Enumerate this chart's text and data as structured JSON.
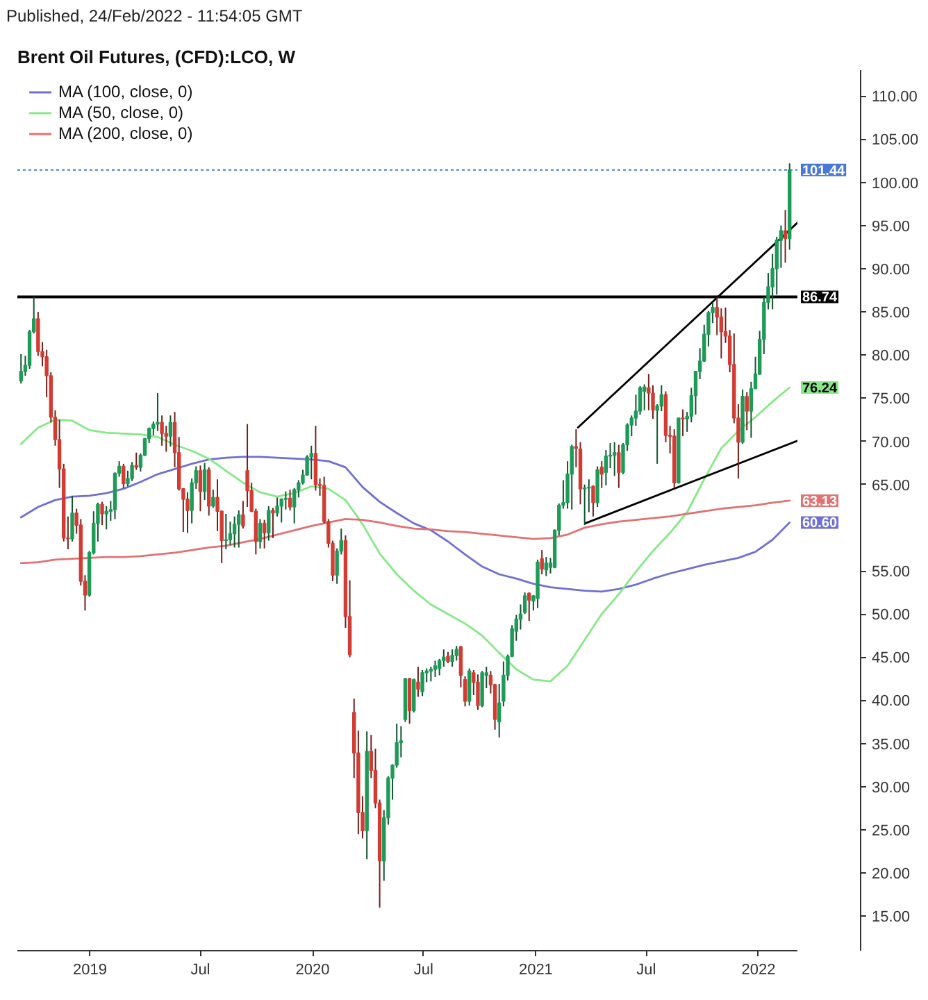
{
  "chart_data": {
    "type": "candlestick",
    "title": "Brent Oil Futures, (CFD):LCO, W",
    "annotations": [
      "Published, 24/Feb/2022 - 11:54:05 GMT"
    ],
    "x": [
      "2018-09-10",
      "2018-09-17",
      "2018-09-24",
      "2018-10-01",
      "2018-10-08",
      "2018-10-15",
      "2018-10-22",
      "2018-10-29",
      "2018-11-05",
      "2018-11-12",
      "2018-11-19",
      "2018-11-26",
      "2018-12-03",
      "2018-12-10",
      "2018-12-17",
      "2018-12-24",
      "2018-12-31",
      "2019-01-07",
      "2019-01-14",
      "2019-01-21",
      "2019-01-28",
      "2019-02-04",
      "2019-02-11",
      "2019-02-18",
      "2019-02-25",
      "2019-03-04",
      "2019-03-11",
      "2019-03-18",
      "2019-03-25",
      "2019-04-01",
      "2019-04-08",
      "2019-04-15",
      "2019-04-22",
      "2019-04-29",
      "2019-05-06",
      "2019-05-13",
      "2019-05-20",
      "2019-05-27",
      "2019-06-03",
      "2019-06-10",
      "2019-06-17",
      "2019-06-24",
      "2019-07-01",
      "2019-07-08",
      "2019-07-15",
      "2019-07-22",
      "2019-07-29",
      "2019-08-05",
      "2019-08-12",
      "2019-08-19",
      "2019-08-26",
      "2019-09-02",
      "2019-09-09",
      "2019-09-16",
      "2019-09-23",
      "2019-09-30",
      "2019-10-07",
      "2019-10-14",
      "2019-10-21",
      "2019-10-28",
      "2019-11-04",
      "2019-11-11",
      "2019-11-18",
      "2019-11-25",
      "2019-12-02",
      "2019-12-09",
      "2019-12-16",
      "2019-12-23",
      "2019-12-30",
      "2020-01-06",
      "2020-01-13",
      "2020-01-20",
      "2020-01-27",
      "2020-02-03",
      "2020-02-10",
      "2020-02-17",
      "2020-02-24",
      "2020-03-02",
      "2020-03-09",
      "2020-03-16",
      "2020-03-23",
      "2020-03-30",
      "2020-04-06",
      "2020-04-13",
      "2020-04-20",
      "2020-04-27",
      "2020-05-04",
      "2020-05-11",
      "2020-05-18",
      "2020-05-25",
      "2020-06-01",
      "2020-06-08",
      "2020-06-15",
      "2020-06-22",
      "2020-06-29",
      "2020-07-06",
      "2020-07-13",
      "2020-07-20",
      "2020-07-27",
      "2020-08-03",
      "2020-08-10",
      "2020-08-17",
      "2020-08-24",
      "2020-08-31",
      "2020-09-07",
      "2020-09-14",
      "2020-09-21",
      "2020-09-28",
      "2020-10-05",
      "2020-10-12",
      "2020-10-19",
      "2020-10-26",
      "2020-11-02",
      "2020-11-09",
      "2020-11-16",
      "2020-11-23",
      "2020-11-30",
      "2020-12-07",
      "2020-12-14",
      "2020-12-21",
      "2020-12-28",
      "2021-01-04",
      "2021-01-11",
      "2021-01-18",
      "2021-01-25",
      "2021-02-01",
      "2021-02-08",
      "2021-02-15",
      "2021-02-22",
      "2021-03-01",
      "2021-03-08",
      "2021-03-15",
      "2021-03-22",
      "2021-03-29",
      "2021-04-05",
      "2021-04-12",
      "2021-04-19",
      "2021-04-26",
      "2021-05-03",
      "2021-05-10",
      "2021-05-17",
      "2021-05-24",
      "2021-05-31",
      "2021-06-07",
      "2021-06-14",
      "2021-06-21",
      "2021-06-28",
      "2021-07-05",
      "2021-07-12",
      "2021-07-19",
      "2021-07-26",
      "2021-08-02",
      "2021-08-09",
      "2021-08-16",
      "2021-08-23",
      "2021-08-30",
      "2021-09-06",
      "2021-09-13",
      "2021-09-20",
      "2021-09-27",
      "2021-10-04",
      "2021-10-11",
      "2021-10-18",
      "2021-10-25",
      "2021-11-01",
      "2021-11-08",
      "2021-11-15",
      "2021-11-22",
      "2021-11-29",
      "2021-12-06",
      "2021-12-13",
      "2021-12-20",
      "2021-12-27",
      "2022-01-03",
      "2022-01-10",
      "2022-01-17",
      "2022-01-24",
      "2022-01-31",
      "2022-02-07",
      "2022-02-14",
      "2022-02-21"
    ],
    "ohlc": [
      [
        77.0,
        80.1,
        76.7,
        78.1
      ],
      [
        78.1,
        79.9,
        77.6,
        78.8
      ],
      [
        78.8,
        82.9,
        78.4,
        82.7
      ],
      [
        82.7,
        86.74,
        82.5,
        84.2
      ],
      [
        84.2,
        85.0,
        79.9,
        80.4
      ],
      [
        80.4,
        81.5,
        78.7,
        79.8
      ],
      [
        79.8,
        80.6,
        75.1,
        77.6
      ],
      [
        77.6,
        78.0,
        72.2,
        72.8
      ],
      [
        72.8,
        73.6,
        69.5,
        70.2
      ],
      [
        70.2,
        72.5,
        64.6,
        66.8
      ],
      [
        66.8,
        67.4,
        58.4,
        58.8
      ],
      [
        58.8,
        61.3,
        57.5,
        58.7
      ],
      [
        58.7,
        63.7,
        58.4,
        61.7
      ],
      [
        61.7,
        62.2,
        59.3,
        60.3
      ],
      [
        60.3,
        61.0,
        53.3,
        53.8
      ],
      [
        53.8,
        54.5,
        50.4,
        52.2
      ],
      [
        52.2,
        57.3,
        52.0,
        57.1
      ],
      [
        57.1,
        61.9,
        56.9,
        60.5
      ],
      [
        60.5,
        62.9,
        58.4,
        62.7
      ],
      [
        62.7,
        63.0,
        60.3,
        61.6
      ],
      [
        61.6,
        62.5,
        59.8,
        61.9
      ],
      [
        61.9,
        63.1,
        60.8,
        62.1
      ],
      [
        62.1,
        66.4,
        61.0,
        66.3
      ],
      [
        66.3,
        67.7,
        65.9,
        67.1
      ],
      [
        67.1,
        67.4,
        64.6,
        65.1
      ],
      [
        65.1,
        66.6,
        64.8,
        65.7
      ],
      [
        65.7,
        67.6,
        65.4,
        67.2
      ],
      [
        67.2,
        68.7,
        66.7,
        67.0
      ],
      [
        67.0,
        68.6,
        66.5,
        68.4
      ],
      [
        68.4,
        70.4,
        68.3,
        70.3
      ],
      [
        70.3,
        71.6,
        69.8,
        71.5
      ],
      [
        71.5,
        72.3,
        70.7,
        72.0
      ],
      [
        72.0,
        75.6,
        71.2,
        72.2
      ],
      [
        72.2,
        73.0,
        69.5,
        70.9
      ],
      [
        70.9,
        71.8,
        68.8,
        70.6
      ],
      [
        70.6,
        73.0,
        69.4,
        72.2
      ],
      [
        72.2,
        73.4,
        67.0,
        68.7
      ],
      [
        68.7,
        70.5,
        64.3,
        64.5
      ],
      [
        64.5,
        64.6,
        59.5,
        63.3
      ],
      [
        63.3,
        64.1,
        59.4,
        62.0
      ],
      [
        62.0,
        65.7,
        60.5,
        65.2
      ],
      [
        65.2,
        67.1,
        64.5,
        66.6
      ],
      [
        66.6,
        67.2,
        61.9,
        64.2
      ],
      [
        64.2,
        67.5,
        63.2,
        66.7
      ],
      [
        66.7,
        67.0,
        61.4,
        62.5
      ],
      [
        62.5,
        64.4,
        62.3,
        63.5
      ],
      [
        63.5,
        65.6,
        59.6,
        61.9
      ],
      [
        61.9,
        62.0,
        55.9,
        58.5
      ],
      [
        58.5,
        61.6,
        57.5,
        58.6
      ],
      [
        58.6,
        60.7,
        58.0,
        59.3
      ],
      [
        59.3,
        61.3,
        57.7,
        60.4
      ],
      [
        60.4,
        62.0,
        57.7,
        61.5
      ],
      [
        61.5,
        63.1,
        59.9,
        60.2
      ],
      [
        66.6,
        72.0,
        62.4,
        64.3
      ],
      [
        64.3,
        65.2,
        61.8,
        61.9
      ],
      [
        61.9,
        62.2,
        56.9,
        58.4
      ],
      [
        58.4,
        61.0,
        57.6,
        60.5
      ],
      [
        60.5,
        60.9,
        57.6,
        59.4
      ],
      [
        59.4,
        62.5,
        58.5,
        62.0
      ],
      [
        62.0,
        62.3,
        58.8,
        61.7
      ],
      [
        61.7,
        63.5,
        61.3,
        62.5
      ],
      [
        62.5,
        63.4,
        60.6,
        63.3
      ],
      [
        63.3,
        64.2,
        62.1,
        63.4
      ],
      [
        63.4,
        64.4,
        62.0,
        62.4
      ],
      [
        62.4,
        64.6,
        60.5,
        64.4
      ],
      [
        64.4,
        65.5,
        63.5,
        65.2
      ],
      [
        65.2,
        66.7,
        65.0,
        66.1
      ],
      [
        66.1,
        68.4,
        66.0,
        68.2
      ],
      [
        68.2,
        69.5,
        65.6,
        68.6
      ],
      [
        68.6,
        71.8,
        64.3,
        65.0
      ],
      [
        65.0,
        65.7,
        63.7,
        64.9
      ],
      [
        64.9,
        65.9,
        60.5,
        60.7
      ],
      [
        60.7,
        61.0,
        57.7,
        58.2
      ],
      [
        58.2,
        58.5,
        53.8,
        54.5
      ],
      [
        54.5,
        57.6,
        53.5,
        57.3
      ],
      [
        57.3,
        59.9,
        56.9,
        58.5
      ],
      [
        58.5,
        59.1,
        48.4,
        49.7
      ],
      [
        49.7,
        53.9,
        45.0,
        45.3
      ],
      [
        38.6,
        40.2,
        31.0,
        33.9
      ],
      [
        33.9,
        36.5,
        24.5,
        27.0
      ],
      [
        27.0,
        28.9,
        24.0,
        24.9
      ],
      [
        24.9,
        36.4,
        21.6,
        34.1
      ],
      [
        34.1,
        36.0,
        31.0,
        31.9
      ],
      [
        31.9,
        34.4,
        27.5,
        28.1
      ],
      [
        28.1,
        28.5,
        16.0,
        21.4
      ],
      [
        21.4,
        27.3,
        19.1,
        26.4
      ],
      [
        26.4,
        31.2,
        25.6,
        31.0
      ],
      [
        31.0,
        32.6,
        28.5,
        32.5
      ],
      [
        32.5,
        37.3,
        32.2,
        35.1
      ],
      [
        35.1,
        37.0,
        33.4,
        35.3
      ],
      [
        37.8,
        42.6,
        37.5,
        42.5
      ],
      [
        42.5,
        42.6,
        37.3,
        38.8
      ],
      [
        38.8,
        42.5,
        38.6,
        42.4
      ],
      [
        42.1,
        43.9,
        40.4,
        41.3
      ],
      [
        41.0,
        43.5,
        40.5,
        43.2
      ],
      [
        43.2,
        43.7,
        42.1,
        43.4
      ],
      [
        43.4,
        43.9,
        42.2,
        43.6
      ],
      [
        43.6,
        44.6,
        42.7,
        44.0
      ],
      [
        43.7,
        44.8,
        42.9,
        44.6
      ],
      [
        44.6,
        45.9,
        43.9,
        45.0
      ],
      [
        45.1,
        45.6,
        44.3,
        44.5
      ],
      [
        44.5,
        45.9,
        43.9,
        45.2
      ],
      [
        45.2,
        46.3,
        44.6,
        45.9
      ],
      [
        46.2,
        46.3,
        41.5,
        42.9
      ],
      [
        42.4,
        42.8,
        39.3,
        39.9
      ],
      [
        39.9,
        43.7,
        39.4,
        43.4
      ],
      [
        43.2,
        43.5,
        40.6,
        42.1
      ],
      [
        42.1,
        43.0,
        38.9,
        39.4
      ],
      [
        39.4,
        43.4,
        39.2,
        43.2
      ],
      [
        42.9,
        43.9,
        41.4,
        43.2
      ],
      [
        42.9,
        43.4,
        40.8,
        41.8
      ],
      [
        41.8,
        41.9,
        36.6,
        37.8
      ],
      [
        37.5,
        41.9,
        35.7,
        39.7
      ],
      [
        39.9,
        44.5,
        39.3,
        42.9
      ],
      [
        42.9,
        45.3,
        42.3,
        45.1
      ],
      [
        45.1,
        48.7,
        45.0,
        48.3
      ],
      [
        48.0,
        49.9,
        46.9,
        49.4
      ],
      [
        49.4,
        51.1,
        48.2,
        50.0
      ],
      [
        50.2,
        52.5,
        50.0,
        52.1
      ],
      [
        52.4,
        52.5,
        49.2,
        51.6
      ],
      [
        51.5,
        52.2,
        50.4,
        52.1
      ],
      [
        51.8,
        56.3,
        50.7,
        56.0
      ],
      [
        56.4,
        57.4,
        54.6,
        55.2
      ],
      [
        55.1,
        56.6,
        54.4,
        55.9
      ],
      [
        55.4,
        56.5,
        54.7,
        55.9
      ],
      [
        55.4,
        59.8,
        55.3,
        59.7
      ],
      [
        59.7,
        62.8,
        59.1,
        62.6
      ],
      [
        62.6,
        65.5,
        62.2,
        62.9
      ],
      [
        62.9,
        67.7,
        62.2,
        66.2
      ],
      [
        66.2,
        69.6,
        62.1,
        69.4
      ],
      [
        69.4,
        71.4,
        67.0,
        69.2
      ],
      [
        69.1,
        69.9,
        62.7,
        64.5
      ],
      [
        64.5,
        65.0,
        60.3,
        64.6
      ],
      [
        64.6,
        65.6,
        61.8,
        64.7
      ],
      [
        64.8,
        64.9,
        61.3,
        62.9
      ],
      [
        62.9,
        67.1,
        62.4,
        66.7
      ],
      [
        67.0,
        67.7,
        64.6,
        66.2
      ],
      [
        66.4,
        69.0,
        64.9,
        68.3
      ],
      [
        68.3,
        69.8,
        66.9,
        68.4
      ],
      [
        68.4,
        69.9,
        66.0,
        68.7
      ],
      [
        68.7,
        69.6,
        64.6,
        66.4
      ],
      [
        66.4,
        69.8,
        66.2,
        69.6
      ],
      [
        69.6,
        72.1,
        68.9,
        71.9
      ],
      [
        71.9,
        73.0,
        70.6,
        72.7
      ],
      [
        72.7,
        75.4,
        71.8,
        73.5
      ],
      [
        73.5,
        76.4,
        73.1,
        76.2
      ],
      [
        75.8,
        76.6,
        73.6,
        76.3
      ],
      [
        76.2,
        77.8,
        73.6,
        75.6
      ],
      [
        75.6,
        76.5,
        72.6,
        73.6
      ],
      [
        73.6,
        74.3,
        67.4,
        74.1
      ],
      [
        74.1,
        76.5,
        73.5,
        75.4
      ],
      [
        75.4,
        75.8,
        69.9,
        70.7
      ],
      [
        70.7,
        71.8,
        68.6,
        70.6
      ],
      [
        70.6,
        71.4,
        64.6,
        65.2
      ],
      [
        65.2,
        72.7,
        65.1,
        72.7
      ],
      [
        72.7,
        73.7,
        70.6,
        72.6
      ],
      [
        72.6,
        73.4,
        71.1,
        72.9
      ],
      [
        72.9,
        76.2,
        72.2,
        75.3
      ],
      [
        75.3,
        78.1,
        73.1,
        78.1
      ],
      [
        78.1,
        80.8,
        77.2,
        79.3
      ],
      [
        79.3,
        83.5,
        79.2,
        82.4
      ],
      [
        82.4,
        85.1,
        81.0,
        84.9
      ],
      [
        84.9,
        86.1,
        83.7,
        85.5
      ],
      [
        85.5,
        86.7,
        82.3,
        84.4
      ],
      [
        84.4,
        85.4,
        79.6,
        82.7
      ],
      [
        82.7,
        85.5,
        81.4,
        82.2
      ],
      [
        82.2,
        82.9,
        78.0,
        78.9
      ],
      [
        78.9,
        82.5,
        72.1,
        72.7
      ],
      [
        72.7,
        74.3,
        65.7,
        69.9
      ],
      [
        69.9,
        76.0,
        69.7,
        75.2
      ],
      [
        75.2,
        75.7,
        71.3,
        73.5
      ],
      [
        73.5,
        76.9,
        70.4,
        76.1
      ],
      [
        76.1,
        79.8,
        76.1,
        77.8
      ],
      [
        77.8,
        82.8,
        77.7,
        81.8
      ],
      [
        81.8,
        86.7,
        80.1,
        86.1
      ],
      [
        86.1,
        89.5,
        85.3,
        87.9
      ],
      [
        87.9,
        91.7,
        85.3,
        90.0
      ],
      [
        90.0,
        93.7,
        87.0,
        93.3
      ],
      [
        93.3,
        95.0,
        90.1,
        94.4
      ],
      [
        94.4,
        96.8,
        90.7,
        93.5
      ],
      [
        93.5,
        102.2,
        92.2,
        101.44
      ]
    ],
    "colors": [
      "#1e9b57",
      "#1e9b57",
      "#1e9b57",
      "#1e9b57",
      "#d23c33",
      "#d23c33",
      "#d23c33",
      "#d23c33",
      "#d23c33",
      "#d23c33",
      "#d23c33",
      "#d23c33",
      "#1e9b57",
      "#d23c33",
      "#d23c33",
      "#d23c33",
      "#1e9b57",
      "#1e9b57",
      "#1e9b57",
      "#d23c33",
      "#1e9b57",
      "#1e9b57",
      "#1e9b57",
      "#1e9b57",
      "#d23c33",
      "#1e9b57",
      "#1e9b57",
      "#d23c33",
      "#1e9b57",
      "#1e9b57",
      "#1e9b57",
      "#1e9b57",
      "#1e9b57",
      "#d23c33",
      "#d23c33",
      "#1e9b57",
      "#d23c33",
      "#d23c33",
      "#d23c33",
      "#d23c33",
      "#1e9b57",
      "#1e9b57",
      "#d23c33",
      "#1e9b57",
      "#d23c33",
      "#1e9b57",
      "#d23c33",
      "#d23c33",
      "#1e9b57",
      "#1e9b57",
      "#1e9b57",
      "#1e9b57",
      "#d23c33",
      "#d23c33",
      "#d23c33",
      "#d23c33",
      "#1e9b57",
      "#d23c33",
      "#1e9b57",
      "#d23c33",
      "#1e9b57",
      "#1e9b57",
      "#1e9b57",
      "#d23c33",
      "#1e9b57",
      "#1e9b57",
      "#1e9b57",
      "#1e9b57",
      "#1e9b57",
      "#d23c33",
      "#d23c33",
      "#d23c33",
      "#d23c33",
      "#d23c33",
      "#1e9b57",
      "#1e9b57",
      "#d23c33",
      "#d23c33",
      "#d23c33",
      "#d23c33",
      "#d23c33",
      "#1e9b57",
      "#d23c33",
      "#d23c33",
      "#d23c33",
      "#1e9b57",
      "#1e9b57",
      "#1e9b57",
      "#1e9b57",
      "#1e9b57",
      "#1e9b57",
      "#d23c33",
      "#1e9b57",
      "#d23c33",
      "#1e9b57",
      "#1e9b57",
      "#1e9b57",
      "#1e9b57",
      "#1e9b57",
      "#1e9b57",
      "#d23c33",
      "#1e9b57",
      "#1e9b57",
      "#d23c33",
      "#d23c33",
      "#1e9b57",
      "#d23c33",
      "#d23c33",
      "#1e9b57",
      "#1e9b57",
      "#d23c33",
      "#d23c33",
      "#1e9b57",
      "#1e9b57",
      "#1e9b57",
      "#1e9b57",
      "#1e9b57",
      "#1e9b57",
      "#1e9b57",
      "#d23c33",
      "#1e9b57",
      "#1e9b57",
      "#d23c33",
      "#1e9b57",
      "#1e9b57",
      "#1e9b57",
      "#1e9b57",
      "#1e9b57",
      "#1e9b57",
      "#1e9b57",
      "#d23c33",
      "#d23c33",
      "#1e9b57",
      "#1e9b57",
      "#d23c33",
      "#1e9b57",
      "#d23c33",
      "#1e9b57",
      "#1e9b57",
      "#1e9b57",
      "#d23c33",
      "#1e9b57",
      "#1e9b57",
      "#1e9b57",
      "#1e9b57",
      "#1e9b57",
      "#1e9b57",
      "#d23c33",
      "#d23c33",
      "#1e9b57",
      "#1e9b57",
      "#d23c33",
      "#d23c33",
      "#d23c33",
      "#1e9b57",
      "#d23c33",
      "#1e9b57",
      "#1e9b57",
      "#1e9b57",
      "#1e9b57",
      "#1e9b57",
      "#1e9b57",
      "#1e9b57",
      "#d23c33",
      "#d23c33",
      "#d23c33",
      "#d23c33",
      "#d23c33",
      "#d23c33",
      "#1e9b57",
      "#d23c33",
      "#1e9b57",
      "#1e9b57",
      "#1e9b57",
      "#1e9b57",
      "#1e9b57",
      "#1e9b57",
      "#1e9b57",
      "#1e9b57",
      "#d23c33",
      "#1e9b57"
    ],
    "series": [
      {
        "name": "MA (100, close, 0)",
        "type": "line",
        "color": "#6f6fd6",
        "x": [
          "2018-09-10",
          "2018-10-08",
          "2018-11-05",
          "2018-12-03",
          "2018-12-31",
          "2019-01-28",
          "2019-02-25",
          "2019-03-25",
          "2019-04-22",
          "2019-05-20",
          "2019-06-17",
          "2019-07-15",
          "2019-08-12",
          "2019-09-09",
          "2019-10-07",
          "2019-11-04",
          "2019-12-02",
          "2019-12-30",
          "2020-01-27",
          "2020-02-24",
          "2020-03-23",
          "2020-04-20",
          "2020-05-18",
          "2020-06-15",
          "2020-07-13",
          "2020-08-10",
          "2020-09-07",
          "2020-10-05",
          "2020-11-02",
          "2020-11-30",
          "2020-12-28",
          "2021-01-25",
          "2021-02-22",
          "2021-03-22",
          "2021-04-19",
          "2021-05-17",
          "2021-06-14",
          "2021-07-12",
          "2021-08-09",
          "2021-09-06",
          "2021-10-04",
          "2021-11-01",
          "2021-11-29",
          "2021-12-27",
          "2022-01-24",
          "2022-02-21"
        ],
        "values": [
          61.2,
          62.4,
          63.2,
          63.6,
          63.7,
          64.0,
          64.5,
          65.3,
          66.2,
          66.8,
          67.4,
          67.9,
          68.1,
          68.2,
          68.2,
          68.1,
          68.0,
          67.9,
          67.7,
          67.0,
          64.7,
          63.0,
          61.7,
          60.5,
          59.7,
          58.4,
          56.9,
          55.5,
          54.6,
          54.1,
          53.5,
          53.1,
          52.9,
          52.7,
          52.6,
          52.9,
          53.4,
          54.1,
          54.7,
          55.2,
          55.7,
          56.1,
          56.5,
          57.2,
          58.6,
          60.6
        ],
        "value_labels": [
          null,
          null,
          null,
          null,
          null,
          null,
          null,
          null,
          null,
          null,
          null,
          null,
          null,
          null,
          null,
          null,
          null,
          null,
          null,
          null,
          null,
          null,
          null,
          null,
          null,
          null,
          null,
          null,
          null,
          null,
          null,
          null,
          null,
          null,
          null,
          null,
          null,
          null,
          null,
          null,
          null,
          null,
          null,
          null,
          null,
          "60.60"
        ]
      },
      {
        "name": "MA (50, close, 0)",
        "type": "line",
        "color": "#86e886",
        "x": [
          "2018-09-10",
          "2018-10-08",
          "2018-11-05",
          "2018-12-03",
          "2018-12-31",
          "2019-01-28",
          "2019-02-25",
          "2019-03-25",
          "2019-04-22",
          "2019-05-20",
          "2019-06-17",
          "2019-07-15",
          "2019-08-12",
          "2019-09-09",
          "2019-10-07",
          "2019-11-04",
          "2019-12-02",
          "2019-12-30",
          "2020-01-27",
          "2020-02-24",
          "2020-03-23",
          "2020-04-20",
          "2020-05-18",
          "2020-06-15",
          "2020-07-13",
          "2020-08-10",
          "2020-09-07",
          "2020-10-05",
          "2020-11-02",
          "2020-11-30",
          "2020-12-28",
          "2021-01-25",
          "2021-02-22",
          "2021-03-22",
          "2021-04-19",
          "2021-05-17",
          "2021-06-14",
          "2021-07-12",
          "2021-08-09",
          "2021-09-06",
          "2021-10-04",
          "2021-11-01",
          "2021-11-29",
          "2021-12-27",
          "2022-01-24",
          "2022-02-21"
        ],
        "values": [
          69.7,
          71.6,
          72.5,
          72.4,
          71.3,
          71.0,
          70.9,
          70.8,
          70.5,
          69.6,
          68.9,
          68.0,
          66.6,
          65.2,
          64.1,
          63.6,
          64.0,
          64.8,
          64.5,
          63.2,
          60.4,
          57.0,
          54.6,
          52.7,
          51.1,
          50.0,
          48.9,
          47.5,
          45.5,
          43.6,
          42.4,
          42.2,
          44.0,
          47.0,
          50.0,
          52.3,
          54.9,
          57.3,
          59.4,
          61.8,
          65.6,
          69.2,
          71.2,
          72.8,
          74.6,
          76.24
        ],
        "value_labels": [
          null,
          null,
          null,
          null,
          null,
          null,
          null,
          null,
          null,
          null,
          null,
          null,
          null,
          null,
          null,
          null,
          null,
          null,
          null,
          null,
          null,
          null,
          null,
          null,
          null,
          null,
          null,
          null,
          null,
          null,
          null,
          null,
          null,
          null,
          null,
          null,
          null,
          null,
          null,
          null,
          null,
          null,
          null,
          null,
          null,
          "76.24"
        ]
      },
      {
        "name": "MA (200, close, 0)",
        "type": "line",
        "color": "#e27171",
        "x": [
          "2018-09-10",
          "2018-10-08",
          "2018-11-05",
          "2018-12-03",
          "2018-12-31",
          "2019-01-28",
          "2019-02-25",
          "2019-03-25",
          "2019-04-22",
          "2019-05-20",
          "2019-06-17",
          "2019-07-15",
          "2019-08-12",
          "2019-09-09",
          "2019-10-07",
          "2019-11-04",
          "2019-12-02",
          "2019-12-30",
          "2020-01-27",
          "2020-02-24",
          "2020-03-23",
          "2020-04-20",
          "2020-05-18",
          "2020-06-15",
          "2020-07-13",
          "2020-08-10",
          "2020-09-07",
          "2020-10-05",
          "2020-11-02",
          "2020-11-30",
          "2020-12-28",
          "2021-01-25",
          "2021-02-22",
          "2021-03-22",
          "2021-04-19",
          "2021-05-17",
          "2021-06-14",
          "2021-07-12",
          "2021-08-09",
          "2021-09-06",
          "2021-10-04",
          "2021-11-01",
          "2021-11-29",
          "2021-12-27",
          "2022-01-24",
          "2022-02-21"
        ],
        "values": [
          55.9,
          56.0,
          56.3,
          56.4,
          56.5,
          56.6,
          56.6,
          56.7,
          56.9,
          57.1,
          57.4,
          57.7,
          57.9,
          58.3,
          58.7,
          59.2,
          59.7,
          60.2,
          60.6,
          61.0,
          60.9,
          60.6,
          60.2,
          59.9,
          59.8,
          59.6,
          59.5,
          59.3,
          59.1,
          58.9,
          58.7,
          58.8,
          59.2,
          60.0,
          60.4,
          60.7,
          60.9,
          61.1,
          61.3,
          61.6,
          61.9,
          62.2,
          62.4,
          62.6,
          62.9,
          63.13
        ],
        "value_labels": [
          null,
          null,
          null,
          null,
          null,
          null,
          null,
          null,
          null,
          null,
          null,
          null,
          null,
          null,
          null,
          null,
          null,
          null,
          null,
          null,
          null,
          null,
          null,
          null,
          null,
          null,
          null,
          null,
          null,
          null,
          null,
          null,
          null,
          null,
          null,
          null,
          null,
          null,
          null,
          null,
          null,
          null,
          null,
          null,
          null,
          "63.13"
        ]
      },
      {
        "type": "line",
        "color": "#000000",
        "x": [
          "2021-03-11",
          "2022-03-07"
        ],
        "values": [
          71.6,
          95.4
        ]
      },
      {
        "type": "line",
        "color": "#000000",
        "x": [
          "2021-03-23",
          "2022-03-07"
        ],
        "values": [
          60.5,
          70.1
        ]
      }
    ],
    "ref_lines": [
      {
        "axis": "y",
        "value": 86.74,
        "label": "86.74",
        "color": "#000000",
        "line_style": "solid"
      },
      {
        "axis": "y",
        "value": 101.44,
        "label": "101.44",
        "color": "#4a78d8",
        "line_style": "dotted"
      }
    ],
    "xlim": [
      "2018-09-04",
      "2022-03-07"
    ],
    "ylim": [
      11,
      113
    ],
    "xticks": [
      {
        "value": "2019-01-01",
        "label": "2019"
      },
      {
        "value": "2019-07-01",
        "label": "Jul"
      },
      {
        "value": "2020-01-01",
        "label": "2020"
      },
      {
        "value": "2020-07-01",
        "label": "Jul"
      },
      {
        "value": "2021-01-01",
        "label": "2021"
      },
      {
        "value": "2021-07-01",
        "label": "Jul"
      },
      {
        "value": "2022-01-01",
        "label": "2022"
      }
    ],
    "yticks": [
      {
        "value": 15,
        "label": "15.00"
      },
      {
        "value": 20,
        "label": "20.00"
      },
      {
        "value": 25,
        "label": "25.00"
      },
      {
        "value": 30,
        "label": "30.00"
      },
      {
        "value": 35,
        "label": "35.00"
      },
      {
        "value": 40,
        "label": "40.00"
      },
      {
        "value": 45,
        "label": "45.00"
      },
      {
        "value": 50,
        "label": "50.00"
      },
      {
        "value": 55,
        "label": "55.00"
      },
      {
        "value": 65,
        "label": "65.00"
      },
      {
        "value": 70,
        "label": "70.00"
      },
      {
        "value": 75,
        "label": "75.00"
      },
      {
        "value": 80,
        "label": "80.00"
      },
      {
        "value": 85,
        "label": "85.00"
      },
      {
        "value": 90,
        "label": "90.00"
      },
      {
        "value": 95,
        "label": "95.00"
      },
      {
        "value": 100,
        "label": "100.00"
      },
      {
        "value": 105,
        "label": "105.00"
      },
      {
        "value": 110,
        "label": "110.00"
      }
    ],
    "legend": "top left"
  }
}
